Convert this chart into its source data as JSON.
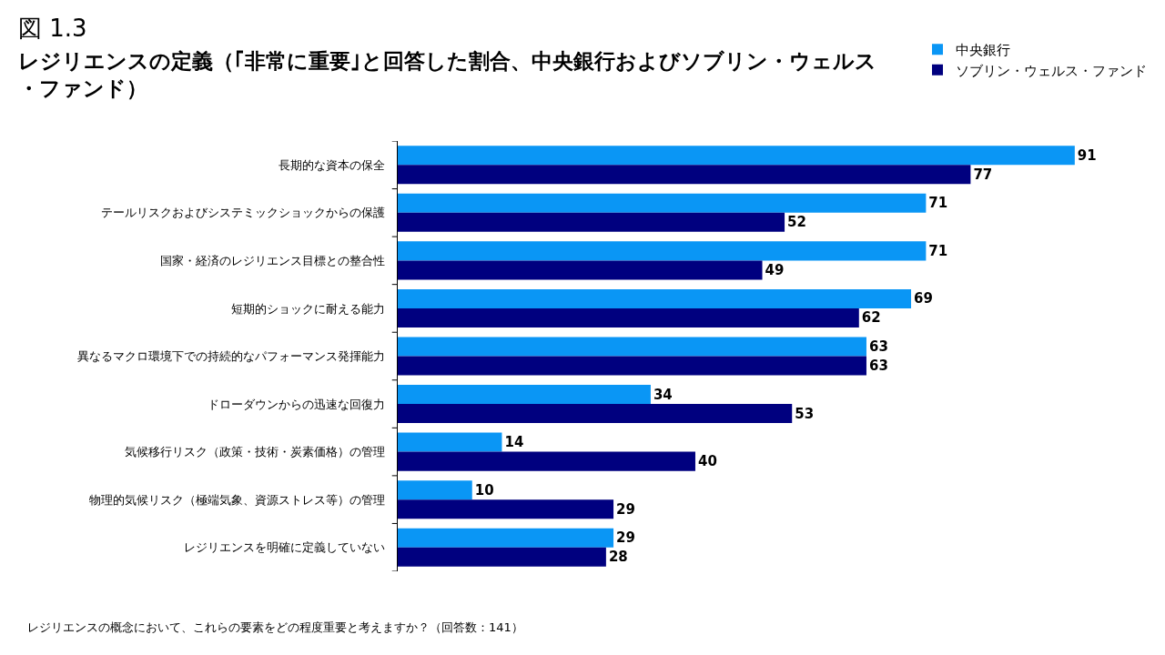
{
  "chart_data": {
    "type": "bar",
    "orientation": "horizontal",
    "title": "レジリエンスの定義（｢非常に重要｣と回答した割合、中央銀行およびソブリン・ウェルス・ファンド）",
    "subtitle": "図 1.3",
    "categories": [
      "長期的な資本の保全",
      "テールリスクおよびシステミックショックからの保護",
      "国家・経済のレジリエンス目標との整合性",
      "短期的ショックに耐える能力",
      "異なるマクロ環境下での持続的なパフォーマンス発揮能力",
      "ドローダウンからの迅速な回復力",
      "気候移行リスク（政策・技術・炭素価格）の管理",
      "物理的気候リスク（極端気象、資源ストレス等）の管理",
      "レジリエンスを明確に定義していない"
    ],
    "series": [
      {
        "name": "中央銀行",
        "color": "#0a96f5",
        "values": [
          91,
          71,
          71,
          69,
          63,
          34,
          14,
          10,
          29
        ]
      },
      {
        "name": "ソブリン・ウェルス・ファンド",
        "color": "#00007f",
        "values": [
          77,
          52,
          49,
          62,
          63,
          53,
          40,
          29,
          28
        ]
      }
    ],
    "data_labels": true,
    "legend": "top right",
    "annotations": [
      "レジリエンスの概念において、これらの要素をどの程度重要と考えますか？（回答数：141）"
    ]
  }
}
